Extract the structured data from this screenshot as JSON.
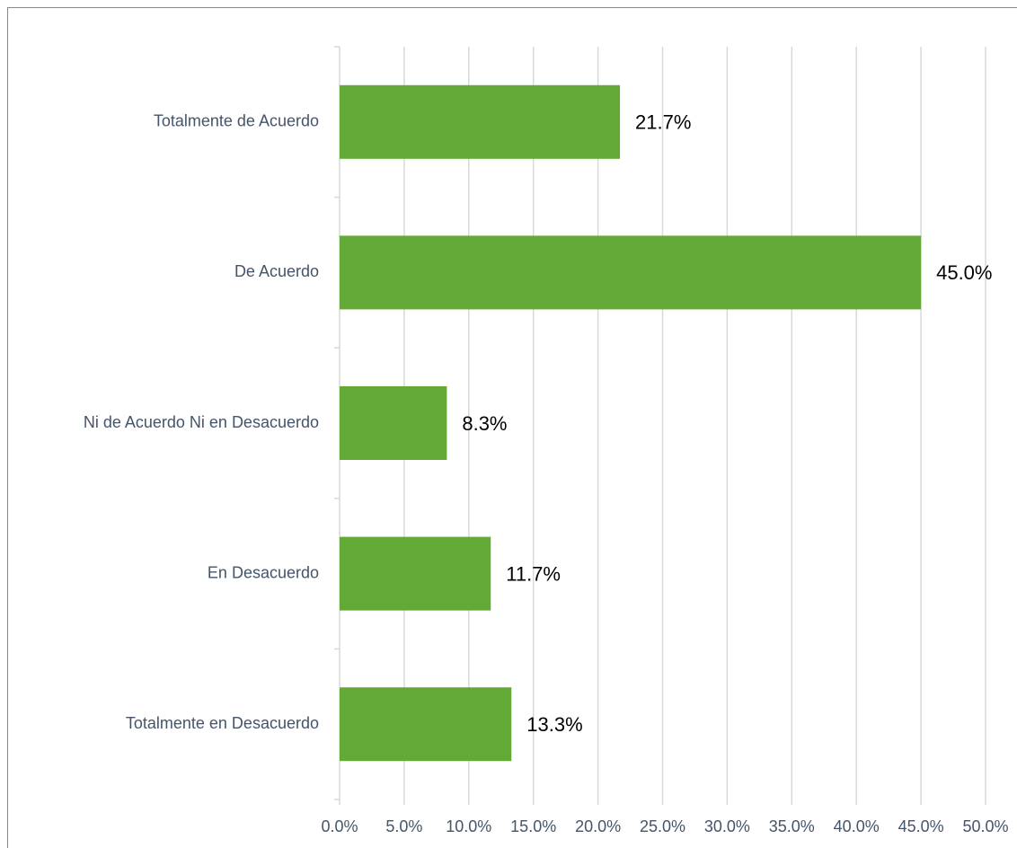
{
  "chart_data": {
    "type": "bar",
    "orientation": "horizontal",
    "categories": [
      "Totalmente de Acuerdo",
      "De Acuerdo",
      "Ni de Acuerdo Ni en Desacuerdo",
      "En Desacuerdo",
      "Totalmente en Desacuerdo"
    ],
    "values": [
      21.7,
      45.0,
      8.3,
      11.7,
      13.3
    ],
    "value_labels": [
      "21.7%",
      "45.0%",
      "8.3%",
      "11.7%",
      "13.3%"
    ],
    "color": "#62a937",
    "xlim": [
      0,
      50
    ],
    "xticks": [
      {
        "value": 0,
        "label": "0.0%"
      },
      {
        "value": 5,
        "label": "5.0%"
      },
      {
        "value": 10,
        "label": "10.0%"
      },
      {
        "value": 15,
        "label": "15.0%"
      },
      {
        "value": 20,
        "label": "20.0%"
      },
      {
        "value": 25,
        "label": "25.0%"
      },
      {
        "value": 30,
        "label": "30.0%"
      },
      {
        "value": 35,
        "label": "35.0%"
      },
      {
        "value": 40,
        "label": "40.0%"
      },
      {
        "value": 45,
        "label": "45.0%"
      },
      {
        "value": 50,
        "label": "50.0%"
      }
    ],
    "grid": true
  }
}
